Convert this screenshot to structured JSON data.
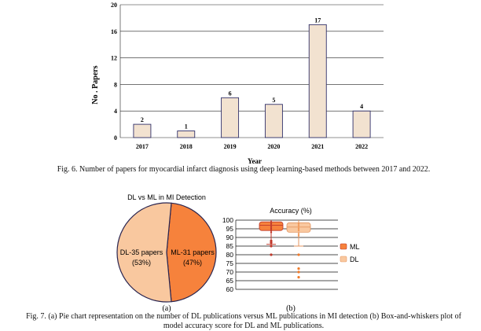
{
  "figure6": {
    "caption": "Fig. 6. Number of papers for myocardial infarct diagnosis using deep learning-based methods between 2017 and 2022."
  },
  "figure7": {
    "caption_line1": "Fig. 7. (a) Pie chart representation on the number of DL publications versus ML publications in MI detection (b) Box-and-whiskers plot of",
    "caption_line2": "model accuracy score for DL and ML publications.",
    "label_a": "(a)",
    "label_b": "(b)"
  },
  "colors": {
    "bar_fill": "#f2e2d0",
    "bar_stroke": "#30306a",
    "dl": "#f9c89f",
    "ml": "#f6823c",
    "ml_dark": "#c0392b",
    "outline": "#2a2550"
  },
  "chart_data": [
    {
      "type": "bar",
      "categories": [
        "2017",
        "2018",
        "2019",
        "2020",
        "2021",
        "2022"
      ],
      "values": [
        2,
        1,
        6,
        5,
        17,
        4
      ],
      "title": "",
      "xlabel": "Year",
      "ylabel": "No . Papers",
      "ylim": [
        0,
        20
      ],
      "yticks": [
        0,
        4,
        8,
        12,
        16,
        20
      ],
      "grid": true
    },
    {
      "type": "pie",
      "title": "DL vs ML in MI Detection",
      "slices": [
        {
          "name": "DL",
          "label": "DL-35 papers",
          "pct": "(53%)",
          "value": 35,
          "color": "#f9c89f"
        },
        {
          "name": "ML",
          "label": "ML-31 papers",
          "pct": "(47%)",
          "value": 31,
          "color": "#f6823c"
        }
      ]
    },
    {
      "type": "box",
      "title": "Accuracy (%)",
      "ylim": [
        60,
        100
      ],
      "yticks": [
        60,
        65,
        70,
        75,
        80,
        85,
        90,
        95,
        100
      ],
      "legend": [
        "ML",
        "DL"
      ],
      "legend_position": "right",
      "series": [
        {
          "name": "ML",
          "min": 86,
          "q1": 94,
          "median": 97,
          "q3": 99,
          "max": 100,
          "outliers": [
            80,
            85,
            87,
            88
          ],
          "points": [
            95,
            96,
            97,
            98,
            99,
            93,
            94
          ]
        },
        {
          "name": "DL",
          "min": 85,
          "q1": 93,
          "median": 96,
          "q3": 98.5,
          "max": 100,
          "outliers": [
            67,
            70,
            72,
            80
          ],
          "points": [
            94,
            95,
            96,
            97,
            98,
            91,
            92
          ]
        }
      ]
    }
  ]
}
